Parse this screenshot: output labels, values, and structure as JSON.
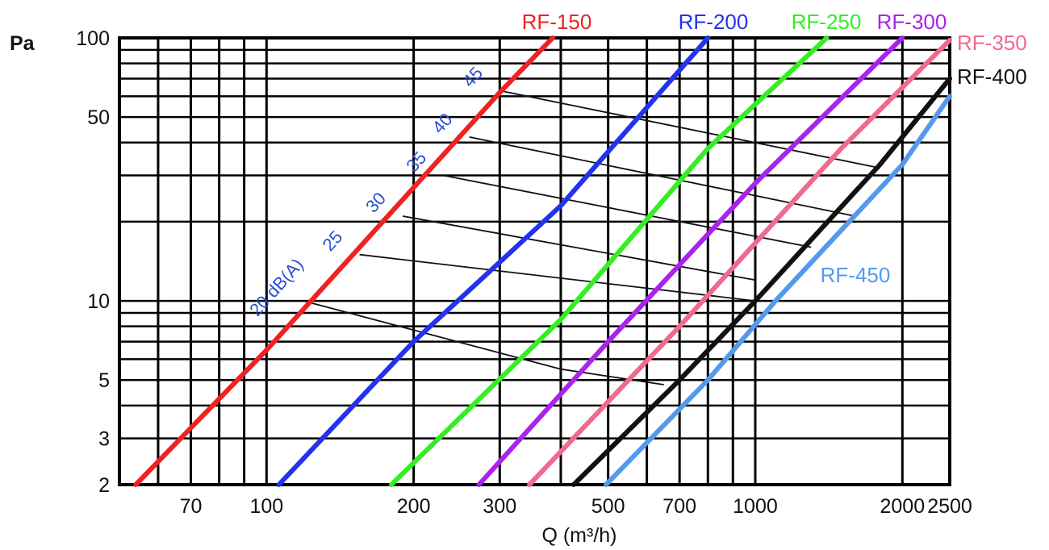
{
  "chart_data": {
    "type": "line",
    "title": "",
    "xlabel": "Q (m³/h)",
    "ylabel": "Pa",
    "x_scale": "log",
    "y_scale": "log",
    "xlim": [
      50,
      2500
    ],
    "ylim": [
      2,
      100
    ],
    "x_ticks": [
      70,
      100,
      200,
      300,
      500,
      700,
      1000,
      2000,
      2500
    ],
    "y_ticks": [
      2,
      3,
      5,
      10,
      50,
      100
    ],
    "grid": true,
    "series": [
      {
        "name": "RF-150",
        "color": "#ee2222",
        "points": [
          [
            54,
            2
          ],
          [
            100,
            6.5
          ],
          [
            300,
            62
          ],
          [
            385,
            100
          ]
        ]
      },
      {
        "name": "RF-200",
        "color": "#2233ee",
        "points": [
          [
            106,
            2
          ],
          [
            200,
            7
          ],
          [
            400,
            23
          ],
          [
            800,
            100
          ]
        ]
      },
      {
        "name": "RF-250",
        "color": "#33ee22",
        "points": [
          [
            180,
            2
          ],
          [
            400,
            8.5
          ],
          [
            800,
            38
          ],
          [
            1400,
            100
          ]
        ]
      },
      {
        "name": "RF-300",
        "color": "#aa22ee",
        "points": [
          [
            272,
            2
          ],
          [
            500,
            7
          ],
          [
            1000,
            28
          ],
          [
            2000,
            100
          ]
        ]
      },
      {
        "name": "RF-350",
        "color": "#ef6a8e",
        "points": [
          [
            345,
            2
          ],
          [
            700,
            8
          ],
          [
            1500,
            38
          ],
          [
            2500,
            98
          ]
        ]
      },
      {
        "name": "RF-400",
        "color": "#111111",
        "points": [
          [
            425,
            2
          ],
          [
            700,
            5
          ],
          [
            1000,
            10
          ],
          [
            1800,
            33
          ],
          [
            2500,
            70
          ]
        ]
      },
      {
        "name": "RF-450",
        "color": "#5599ee",
        "points": [
          [
            495,
            2
          ],
          [
            800,
            5
          ],
          [
            1100,
            10
          ],
          [
            2000,
            33
          ],
          [
            2500,
            60
          ]
        ]
      }
    ],
    "noise_lines": [
      {
        "label": "20 dB(A)",
        "points": [
          [
            119,
            10
          ],
          [
            400,
            5.5
          ],
          [
            650,
            4.8
          ]
        ]
      },
      {
        "label": "25",
        "points": [
          [
            155,
            15
          ],
          [
            1000,
            10
          ]
        ]
      },
      {
        "label": "30",
        "points": [
          [
            190,
            21
          ],
          [
            1000,
            12
          ]
        ]
      },
      {
        "label": "35",
        "points": [
          [
            230,
            30
          ],
          [
            1300,
            16
          ]
        ]
      },
      {
        "label": "40",
        "points": [
          [
            260,
            42
          ],
          [
            1600,
            21
          ]
        ]
      },
      {
        "label": "45",
        "points": [
          [
            300,
            63
          ],
          [
            1800,
            32
          ]
        ]
      }
    ]
  }
}
